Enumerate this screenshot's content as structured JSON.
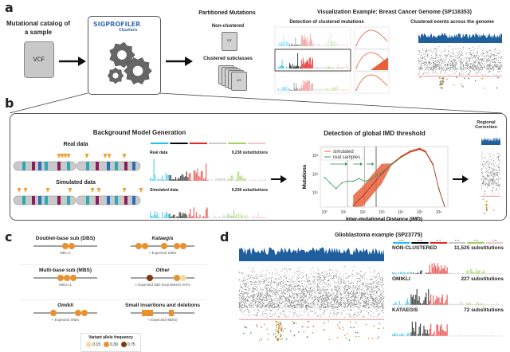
{
  "panel_a": {
    "label": "a",
    "input_title": "Mutational catalog of a sample",
    "vcf_label": "VCF",
    "tool_logo": "SIGPROFILER Clusters",
    "partitioned_title": "Partitioned Mutations",
    "non_clustered": "Non-clustered",
    "clustered_subclasses": "Clustered subclasses",
    "small_vcf": "VCF",
    "viz_title": "Visualization Example: Breast Cancer Genome (SP116353)",
    "viz_left": "Detection of clustered mutations",
    "viz_right": "Clustered events across the genome"
  },
  "panel_b": {
    "label": "b",
    "bg_title": "Background Model Generation",
    "real": "Real data",
    "simulated": "Simulated data",
    "spectrum_real_label": "Real data",
    "spectrum_sim_label": "Simulated data",
    "spectrum_real_count": "9,238 substitutions",
    "spectrum_sim_count": "9,238 substitutions",
    "imd_title": "Detection of global IMD threshold",
    "regional_title": "Regional Correction"
  },
  "chart_data": {
    "type": "line",
    "title": "Detection of global IMD threshold",
    "xlabel": "Inter-mutational Distance (IMD)",
    "ylabel": "Mutations",
    "xscale": "log",
    "yscale": "log",
    "xlim": [
      0.6,
      3000000
    ],
    "ylim": [
      1.6,
      3000
    ],
    "xticks": [
      "10⁰",
      "10¹",
      "10²",
      "10³",
      "10⁴",
      "10⁵",
      "10⁶"
    ],
    "yticks": [
      "10¹",
      "10²",
      "10³"
    ],
    "legend": "top-left",
    "grid": false,
    "series": [
      {
        "name": "simulated",
        "color": "#e8603c",
        "x": [
          32,
          100,
          316,
          1000,
          3162,
          10000,
          31623,
          100000,
          200000,
          500000,
          1000000,
          2000000
        ],
        "y": [
          2,
          6,
          25,
          100,
          316,
          800,
          1600,
          2240,
          1600,
          316,
          16,
          1.8
        ]
      },
      {
        "name": "real samples",
        "color": "#3a9a5a",
        "x": [
          1,
          2,
          4,
          8,
          16,
          32,
          64,
          128,
          256,
          512,
          1000,
          3162,
          10000
        ],
        "y": [
          63,
          32,
          16,
          32,
          40,
          40,
          56,
          40,
          50,
          80,
          112,
          316,
          800
        ]
      }
    ],
    "threshold_lines_x": [
      16,
      128,
      512
    ]
  },
  "panel_c": {
    "label": "c",
    "items": [
      {
        "title": "Doublet-base sub (DBS)",
        "note": "IMD=1",
        "italic": false
      },
      {
        "title": "Kataegis",
        "note": "< Expected IMDs",
        "italic": true
      },
      {
        "title": "Multi-base sub (MBS)",
        "note": "IMDs=1",
        "italic": false
      },
      {
        "title": "Other",
        "note": "< Expected IMD Inconsistent VAFs",
        "italic": true
      },
      {
        "title": "Omikli",
        "note": "< Expected IMDs",
        "italic": true
      },
      {
        "title": "Small insertions and deletions",
        "note": "< Expected IMD(s)",
        "italic": false
      }
    ],
    "vaf_title": "Variant allele frequency",
    "vaf": [
      {
        "label": "0.15",
        "color": "#f5d9a8"
      },
      {
        "label": "0.30",
        "color": "#e8912e"
      },
      {
        "label": "0.75",
        "color": "#7a3b12"
      }
    ]
  },
  "panel_d": {
    "label": "d",
    "title": "Glioblastoma example (SP23775)",
    "spectra": [
      {
        "label": "NON-CLUSTERED",
        "count": "11,525 substitutions"
      },
      {
        "label": "OMIKLI",
        "count": "227 substitutions"
      },
      {
        "label": "KATAEGIS",
        "count": "72 substitutions"
      }
    ],
    "sbs_classes": [
      "C>A",
      "C>G",
      "C>T",
      "T>A",
      "T>C",
      "T>G"
    ]
  },
  "colors": {
    "sbs": [
      "#1ebff0",
      "#050708",
      "#e62725",
      "#cbcacb",
      "#a1cf64",
      "#edc8c5"
    ],
    "density": "#1f5f9e",
    "rainfall": "#777777",
    "orange": "#e8912e",
    "threshold": "#e05050"
  }
}
